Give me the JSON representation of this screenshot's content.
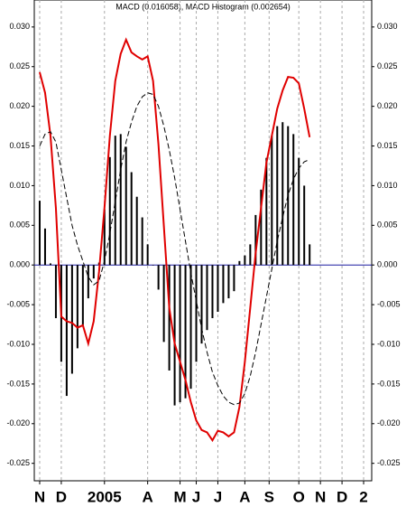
{
  "chart_data": {
    "type": "combo",
    "title": "MACD (0.016058), MACD Histogram (0.002654)",
    "x": [
      0,
      1,
      2,
      3,
      4,
      5,
      6,
      7,
      8,
      9,
      10,
      11,
      12,
      13,
      14,
      15,
      16,
      17,
      18,
      19,
      20,
      21,
      22,
      23,
      24,
      25,
      26,
      27,
      28,
      29,
      30,
      31,
      32,
      33,
      34,
      35,
      36,
      37,
      38,
      39,
      40,
      41,
      42,
      43,
      44,
      45,
      46,
      47,
      48,
      49,
      50
    ],
    "xlim": [
      -1,
      61.5
    ],
    "xticks": [
      {
        "value": 0,
        "label": "N"
      },
      {
        "value": 4,
        "label": "D"
      },
      {
        "value": 12,
        "label": "2005"
      },
      {
        "value": 20,
        "label": "A"
      },
      {
        "value": 26,
        "label": "M"
      },
      {
        "value": 29,
        "label": "J"
      },
      {
        "value": 33,
        "label": "J"
      },
      {
        "value": 38,
        "label": "A"
      },
      {
        "value": 42.5,
        "label": "S"
      },
      {
        "value": 48,
        "label": "O"
      },
      {
        "value": 52,
        "label": "N"
      },
      {
        "value": 56,
        "label": "D"
      },
      {
        "value": 60,
        "label": "2"
      }
    ],
    "ylim": [
      -0.0272,
      0.0334
    ],
    "yticks": [
      {
        "value": 0.03,
        "label": "0.030"
      },
      {
        "value": 0.025,
        "label": "0.025"
      },
      {
        "value": 0.02,
        "label": "0.020"
      },
      {
        "value": 0.015,
        "label": "0.015"
      },
      {
        "value": 0.01,
        "label": "0.010"
      },
      {
        "value": 0.005,
        "label": "0.005"
      },
      {
        "value": 0,
        "label": "0.000"
      },
      {
        "value": -0.005,
        "label": "-0.005"
      },
      {
        "value": -0.01,
        "label": "-0.010"
      },
      {
        "value": -0.015,
        "label": "-0.015"
      },
      {
        "value": -0.02,
        "label": "-0.020"
      },
      {
        "value": -0.025,
        "label": "-0.025"
      }
    ],
    "zero_line_color": "#1a1aa0",
    "series": [
      {
        "type": "bar",
        "color": "#000000",
        "values": [
          0.0081,
          0.0046,
          0.0002,
          -0.0067,
          -0.0122,
          -0.0165,
          -0.0137,
          -0.0105,
          -0.0076,
          -0.0042,
          -0.0017,
          0.0003,
          0.007,
          0.0136,
          0.0163,
          0.0165,
          0.0149,
          0.0117,
          0.0086,
          0.006,
          0.0026,
          0,
          -0.0031,
          -0.0097,
          -0.0133,
          -0.0177,
          -0.0173,
          -0.0168,
          -0.0156,
          -0.0122,
          -0.0099,
          -0.0082,
          -0.0067,
          -0.0059,
          -0.0048,
          -0.0042,
          -0.0033,
          0.0005,
          0.0012,
          0.0026,
          0.0063,
          0.0095,
          0.0135,
          0.0163,
          0.0175,
          0.018,
          0.0175,
          0.0165,
          0.0135,
          0.01,
          0.0026
        ]
      },
      {
        "type": "line",
        "color": "#e00000",
        "dashed": false,
        "values": [
          0.0243,
          0.0217,
          0.0163,
          0.0072,
          -0.0065,
          -0.0071,
          -0.0073,
          -0.0079,
          -0.0076,
          -0.0099,
          -0.0071,
          -0.0008,
          0.0072,
          0.0163,
          0.0232,
          0.0266,
          0.0284,
          0.0268,
          0.0263,
          0.0259,
          0.0263,
          0.0232,
          0.0152,
          0.0049,
          -0.0054,
          -0.0099,
          -0.0122,
          -0.0145,
          -0.0173,
          -0.0196,
          -0.0208,
          -0.0211,
          -0.0221,
          -0.0209,
          -0.0211,
          -0.0216,
          -0.0211,
          -0.0179,
          -0.0122,
          -0.0054,
          0.0015,
          0.0072,
          0.0129,
          0.0163,
          0.0197,
          0.022,
          0.0237,
          0.0236,
          0.0229,
          0.0197,
          0.0161
        ]
      },
      {
        "type": "line",
        "color": "#000000",
        "dashed": true,
        "values": [
          0.015,
          0.0165,
          0.0168,
          0.0155,
          0.012,
          0.0085,
          0.005,
          0.0025,
          0.0005,
          -0.0015,
          -0.0025,
          -0.002,
          0.0005,
          0.004,
          0.008,
          0.012,
          0.0155,
          0.018,
          0.02,
          0.0212,
          0.0217,
          0.0215,
          0.02,
          0.0175,
          0.0145,
          0.011,
          0.007,
          0.003,
          -0.001,
          -0.0045,
          -0.008,
          -0.011,
          -0.0135,
          -0.0152,
          -0.0165,
          -0.0173,
          -0.0176,
          -0.0174,
          -0.0162,
          -0.014,
          -0.011,
          -0.0075,
          -0.004,
          -0.0005,
          0.003,
          0.006,
          0.0088,
          0.0108,
          0.0122,
          0.013,
          0.0133
        ]
      }
    ]
  }
}
